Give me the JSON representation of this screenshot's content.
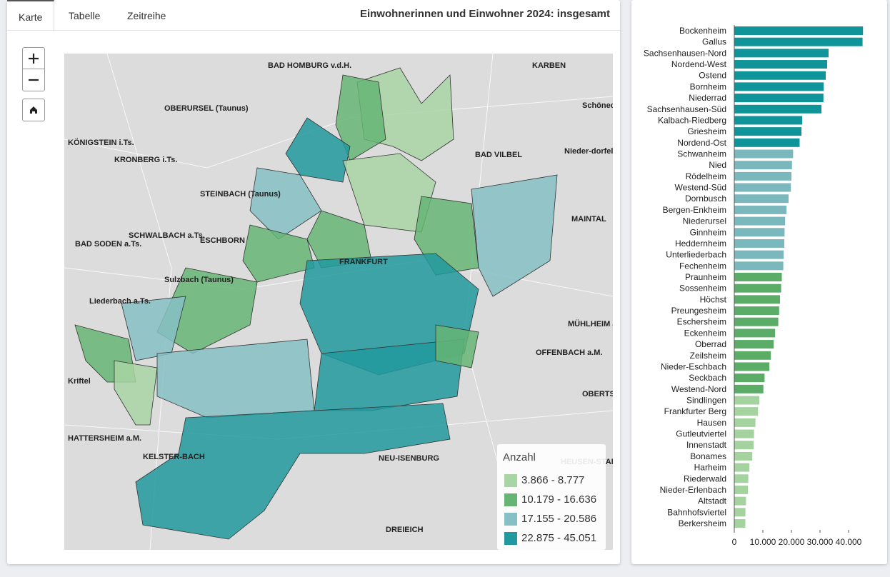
{
  "tabs": [
    "Karte",
    "Tabelle",
    "Zeitreihe"
  ],
  "title": "Einwohnerinnen und Einwohner 2024: insgesamt",
  "map_labels": [
    "BAD HOMBURG v.d.H.",
    "KARBEN",
    "OBERURSEL (Taunus)",
    "KÖNIGSTEIN i.Ts.",
    "KRONBERG i.Ts.",
    "BAD VILBEL",
    "Nieder-dorfelden",
    "Schöneck",
    "STEINBACH (Taunus)",
    "MAINTAL",
    "BAD SODEN a.Ts.",
    "SCHWALBACH a.Ts.",
    "ESCHBORN",
    "Sulzbach (Taunus)",
    "Liederbach a.Ts.",
    "FRANKFURT",
    "MÜHLHEIM a.M.",
    "OFFENBACH a.M.",
    "Kriftel",
    "HATTERSHEIM a.M.",
    "KELSTER-BACH",
    "NEU-ISENBURG",
    "DREIEICH",
    "OBERTS-HAUSEN",
    "HEUSEN-STAMM"
  ],
  "legend": {
    "title": "Anzahl",
    "items": [
      {
        "label": "3.866 - 8.777",
        "color": "#a9d5a4"
      },
      {
        "label": "10.179 - 16.636",
        "color": "#66b574"
      },
      {
        "label": "17.155 - 20.586",
        "color": "#86bfc4"
      },
      {
        "label": "22.875 - 45.051",
        "color": "#21999e"
      }
    ]
  },
  "chart_data": {
    "type": "hbar",
    "categories": [
      "Bockenheim",
      "Gallus",
      "Sachsenhausen-Nord",
      "Nordend-West",
      "Ostend",
      "Bornheim",
      "Niederrad",
      "Sachsenhausen-Süd",
      "Kalbach-Riedberg",
      "Griesheim",
      "Nordend-Ost",
      "Schwanheim",
      "Nied",
      "Rödelheim",
      "Westend-Süd",
      "Dornbusch",
      "Bergen-Enkheim",
      "Niederursel",
      "Ginnheim",
      "Heddernheim",
      "Unterliederbach",
      "Fechenheim",
      "Praunheim",
      "Sossenheim",
      "Höchst",
      "Preungesheim",
      "Eschersheim",
      "Eckenheim",
      "Oberrad",
      "Zeilsheim",
      "Nieder-Eschbach",
      "Seckbach",
      "Westend-Nord",
      "Sindlingen",
      "Frankfurter Berg",
      "Hausen",
      "Gutleutviertel",
      "Innenstadt",
      "Bonames",
      "Harheim",
      "Riederwald",
      "Nieder-Erlenbach",
      "Altstadt",
      "Bahnhofsviertel",
      "Berkersheim"
    ],
    "values": [
      45051,
      44900,
      33000,
      32500,
      32000,
      31300,
      31200,
      30500,
      23800,
      23500,
      22875,
      20586,
      20200,
      20000,
      19800,
      19000,
      18300,
      17800,
      17600,
      17500,
      17300,
      17155,
      16636,
      16400,
      16000,
      15700,
      15400,
      14300,
      13800,
      12800,
      12300,
      10600,
      10179,
      8777,
      8300,
      7400,
      6900,
      6800,
      6300,
      5300,
      4900,
      4800,
      4100,
      3900,
      3866
    ],
    "colors": [
      "#0f9499",
      "#0f9499",
      "#0f9499",
      "#0f9499",
      "#0f9499",
      "#0f9499",
      "#0f9499",
      "#0f9499",
      "#0f9499",
      "#0f9499",
      "#0f9499",
      "#7bb8be",
      "#7bb8be",
      "#7bb8be",
      "#7bb8be",
      "#7bb8be",
      "#7bb8be",
      "#7bb8be",
      "#7bb8be",
      "#7bb8be",
      "#7bb8be",
      "#7bb8be",
      "#5aac67",
      "#5aac67",
      "#5aac67",
      "#5aac67",
      "#5aac67",
      "#5aac67",
      "#5aac67",
      "#5aac67",
      "#5aac67",
      "#5aac67",
      "#5aac67",
      "#a4d3a0",
      "#a4d3a0",
      "#a4d3a0",
      "#a4d3a0",
      "#a4d3a0",
      "#a4d3a0",
      "#a4d3a0",
      "#a4d3a0",
      "#a4d3a0",
      "#a4d3a0",
      "#a4d3a0",
      "#a4d3a0"
    ],
    "xlim": [
      0,
      46500
    ],
    "xticks": [
      0,
      {
        "value": 10000,
        "label": "10.000"
      },
      {
        "value": 20000,
        "label": "20.000"
      },
      {
        "value": 30000,
        "label": "30.000"
      },
      {
        "value": 40000,
        "label": "40.000"
      }
    ]
  }
}
